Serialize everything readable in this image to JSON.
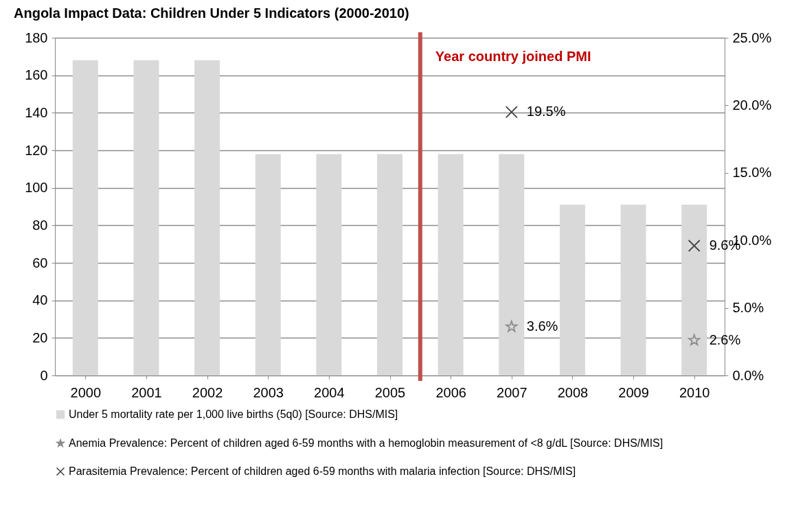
{
  "chart_data": {
    "type": "bar",
    "title": "Angola Impact Data: Children Under 5 Indicators (2000-2010)",
    "x": [
      2000,
      2001,
      2002,
      2003,
      2004,
      2005,
      2006,
      2007,
      2008,
      2009,
      2010
    ],
    "xlim": [
      1999.5,
      2010.5
    ],
    "xticks": [
      2000,
      2001,
      2002,
      2003,
      2004,
      2005,
      2006,
      2007,
      2008,
      2009,
      2010
    ],
    "ylim": [
      0,
      180
    ],
    "yticks": [
      0,
      20,
      40,
      60,
      80,
      100,
      120,
      140,
      160,
      180
    ],
    "y2lim": [
      0,
      25
    ],
    "y2ticks": [
      {
        "value": 0,
        "label": "0.0%"
      },
      {
        "value": 5,
        "label": "5.0%"
      },
      {
        "value": 10,
        "label": "10.0%"
      },
      {
        "value": 15,
        "label": "15.0%"
      },
      {
        "value": 20,
        "label": "20.0%"
      },
      {
        "value": 25,
        "label": "25.0%"
      }
    ],
    "series": [
      {
        "name": "Under 5 mortality rate per 1,000 live births (5q0) [Source: DHS/MIS]",
        "color": "#d9d9d9",
        "values": [
          168,
          168,
          168,
          118,
          118,
          118,
          118,
          118,
          91,
          91,
          91
        ]
      },
      {
        "name": "Anemia Prevalence: Percent of children aged 6-59 months with a hemoglobin measurement of <8 g/dL [Source: DHS/MIS]",
        "type": "scatter",
        "axis": "y2",
        "marker": "star",
        "color": "#8c8c8c",
        "values": [
          null,
          null,
          null,
          null,
          null,
          null,
          null,
          3.6,
          null,
          null,
          2.6
        ],
        "value_labels": [
          null,
          null,
          null,
          null,
          null,
          null,
          null,
          "3.6%",
          null,
          null,
          "2.6%"
        ]
      },
      {
        "name": "Parasitemia Prevalence: Percent of children aged 6-59 months with malaria infection [Source: DHS/MIS]",
        "type": "scatter",
        "axis": "y2",
        "marker": "cross",
        "color": "#404040",
        "values": [
          null,
          null,
          null,
          null,
          null,
          null,
          null,
          19.5,
          null,
          null,
          9.6
        ],
        "value_labels": [
          null,
          null,
          null,
          null,
          null,
          null,
          null,
          "19.5%",
          null,
          null,
          "9.6%"
        ]
      }
    ],
    "ref_lines": [
      {
        "axis": "x",
        "value": 2005.5,
        "label": "Year country joined PMI",
        "color": "#c0504d"
      }
    ],
    "grid": "y",
    "legend": "bottom"
  }
}
